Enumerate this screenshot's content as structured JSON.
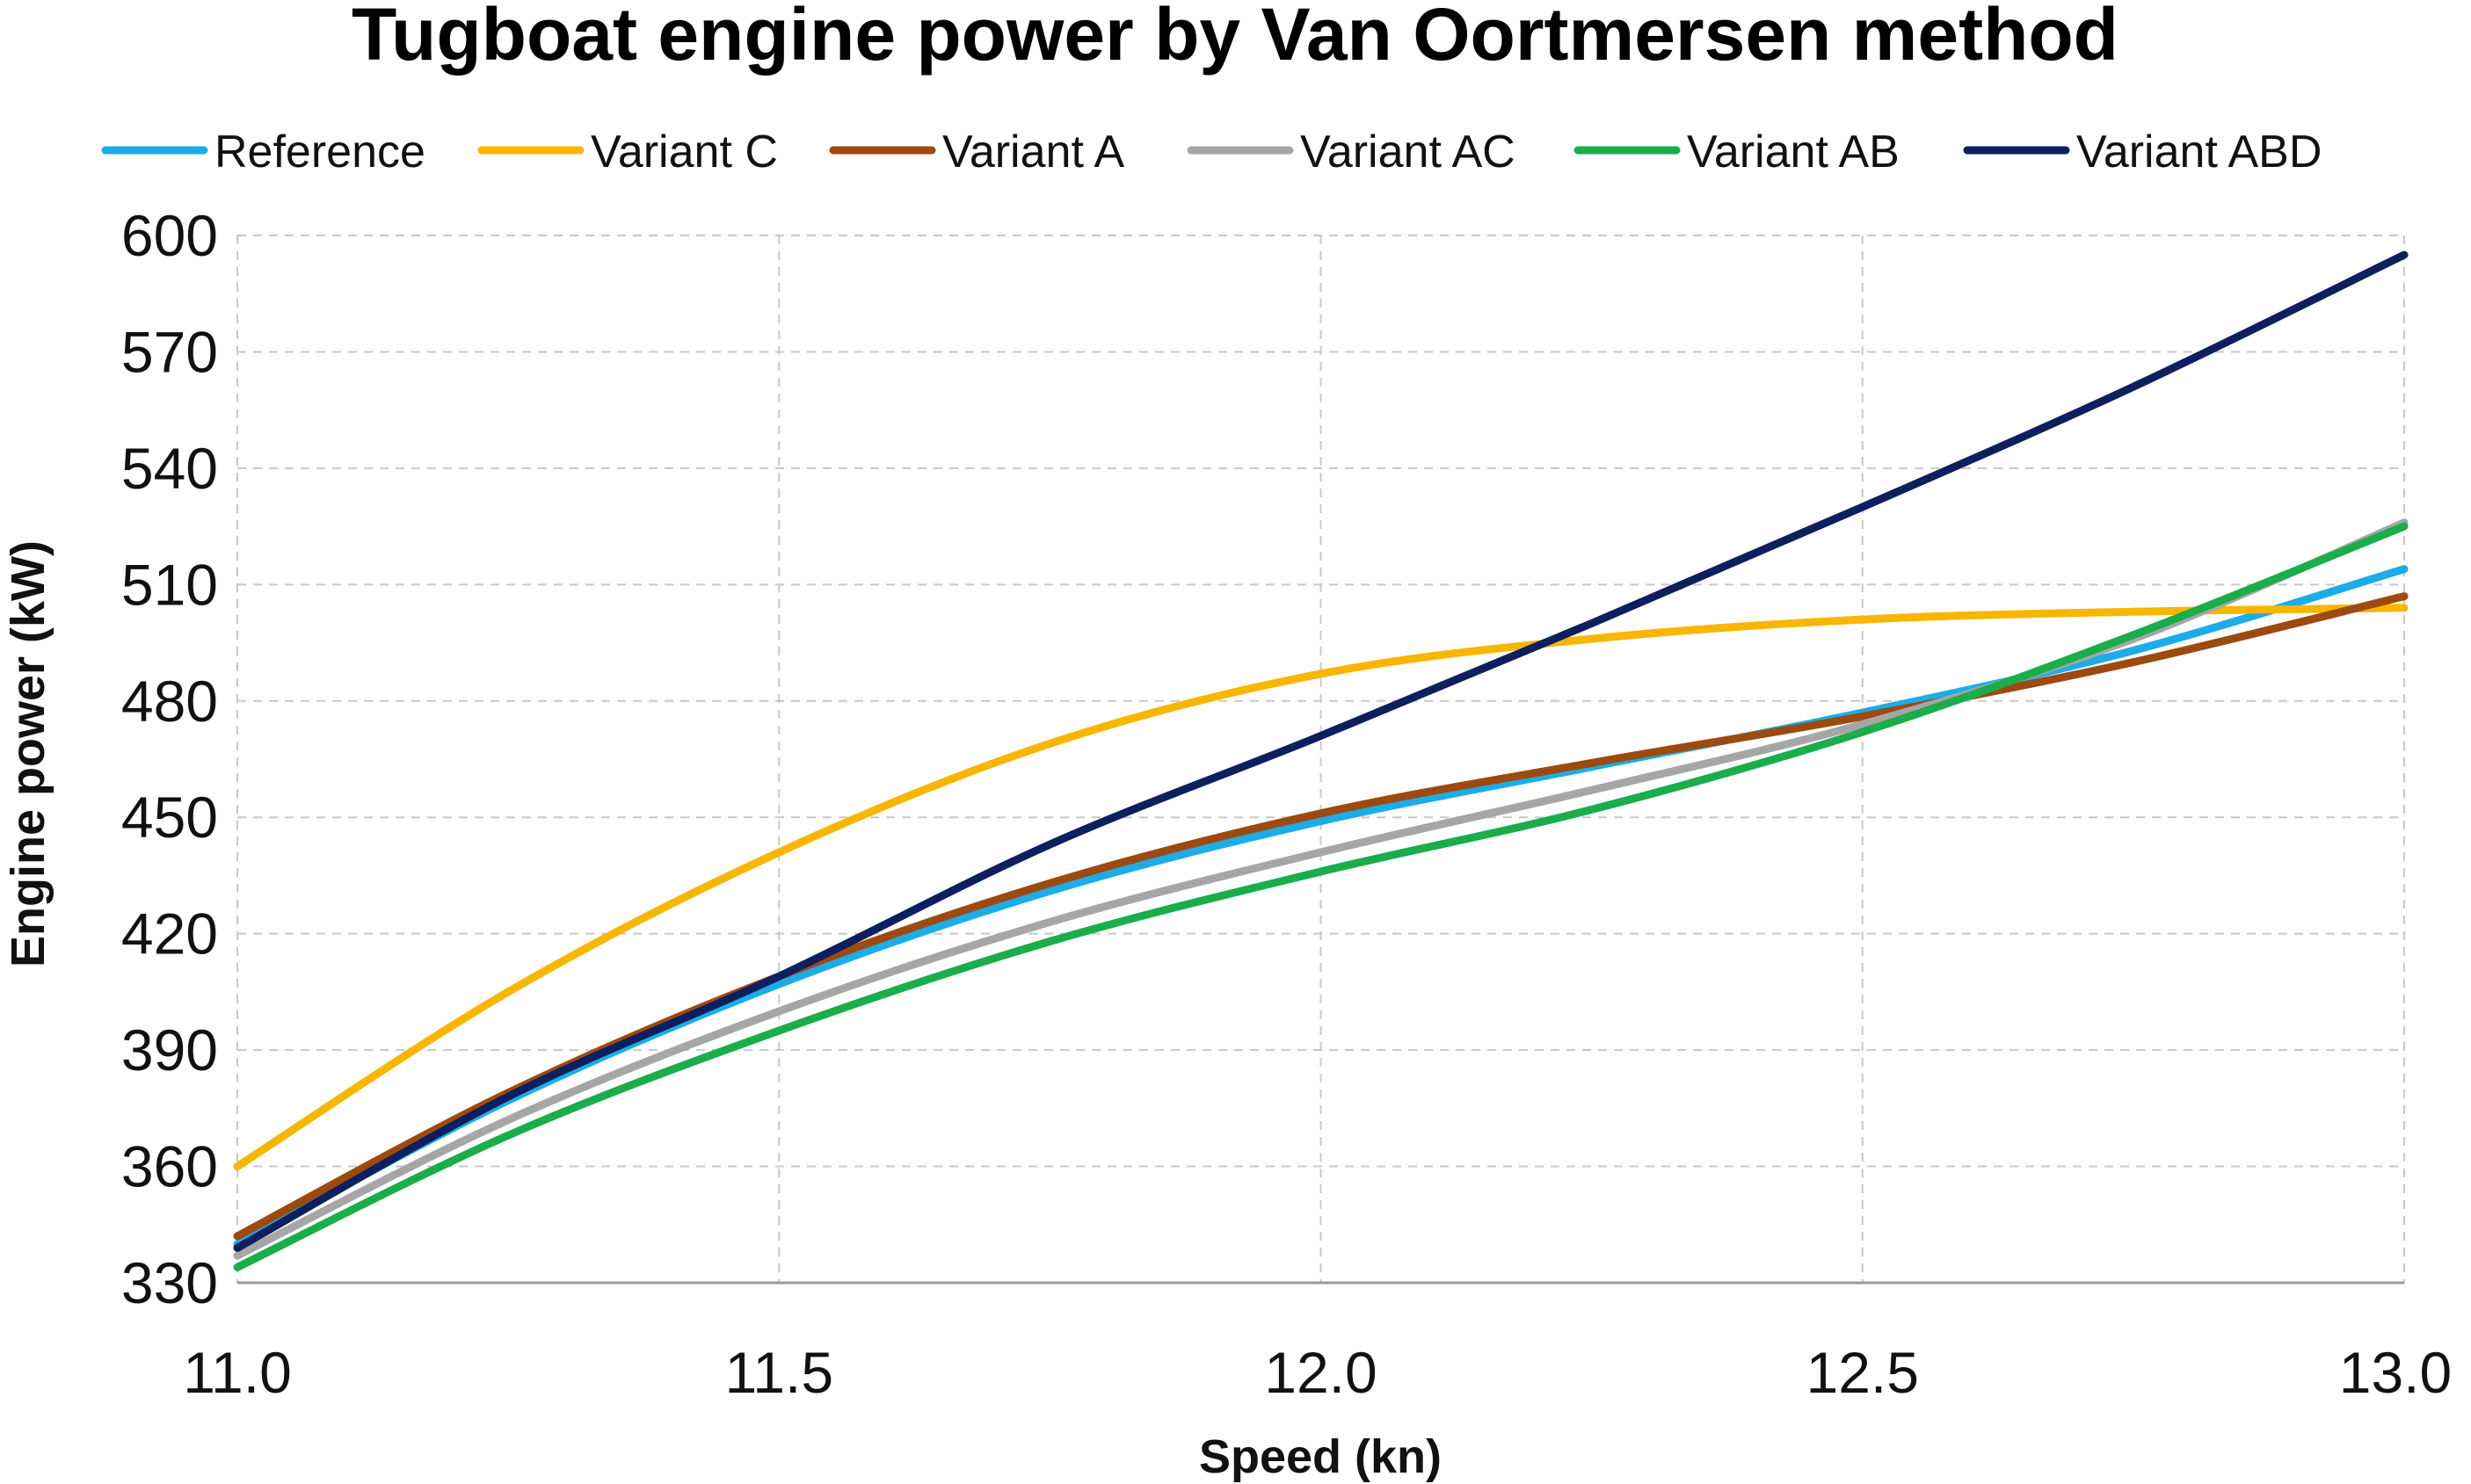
{
  "chart_data": {
    "type": "line",
    "title": "Tugboat engine power by Van Oortmersen method",
    "xlabel": "Speed (kn)",
    "ylabel": "Engine power (kW)",
    "xlim": [
      11.0,
      13.0
    ],
    "ylim": [
      330,
      600
    ],
    "x_ticks": [
      "11.0",
      "11.5",
      "12.0",
      "12.5",
      "13.0"
    ],
    "x_tick_values": [
      11.0,
      11.5,
      12.0,
      12.5,
      13.0
    ],
    "y_ticks": [
      "600",
      "570",
      "540",
      "510",
      "480",
      "450",
      "420",
      "390",
      "360",
      "330"
    ],
    "y_tick_values": [
      600,
      570,
      540,
      510,
      480,
      450,
      420,
      390,
      360,
      330
    ],
    "grid": true,
    "legend_position": "top",
    "x": [
      11.0,
      11.25,
      11.5,
      11.75,
      12.0,
      12.25,
      12.5,
      12.75,
      13.0
    ],
    "series": [
      {
        "name": "Reference",
        "color": "#1cace8",
        "values": [
          340,
          377,
          407,
          431,
          449,
          463,
          477,
          493,
          514
        ]
      },
      {
        "name": "Variant C",
        "color": "#f7b600",
        "values": [
          360,
          405,
          441,
          469,
          487,
          496,
          501,
          503,
          504
        ]
      },
      {
        "name": "Variant A",
        "color": "#9c4a10",
        "values": [
          342,
          379,
          409,
          433,
          451,
          464,
          476,
          490,
          507
        ]
      },
      {
        "name": "Variant AC",
        "color": "#a6a6a6",
        "values": [
          337,
          372,
          400,
          423,
          441,
          457,
          474,
          496,
          526
        ]
      },
      {
        "name": "Variant AB",
        "color": "#1aad4a",
        "values": [
          334,
          368,
          395,
          418,
          436,
          452,
          472,
          497,
          525
        ]
      },
      {
        "name": "Variant ABD",
        "color": "#0d1f5e",
        "values": [
          339,
          378,
          409,
          443,
          471,
          500,
          530,
          561,
          595
        ]
      }
    ]
  }
}
